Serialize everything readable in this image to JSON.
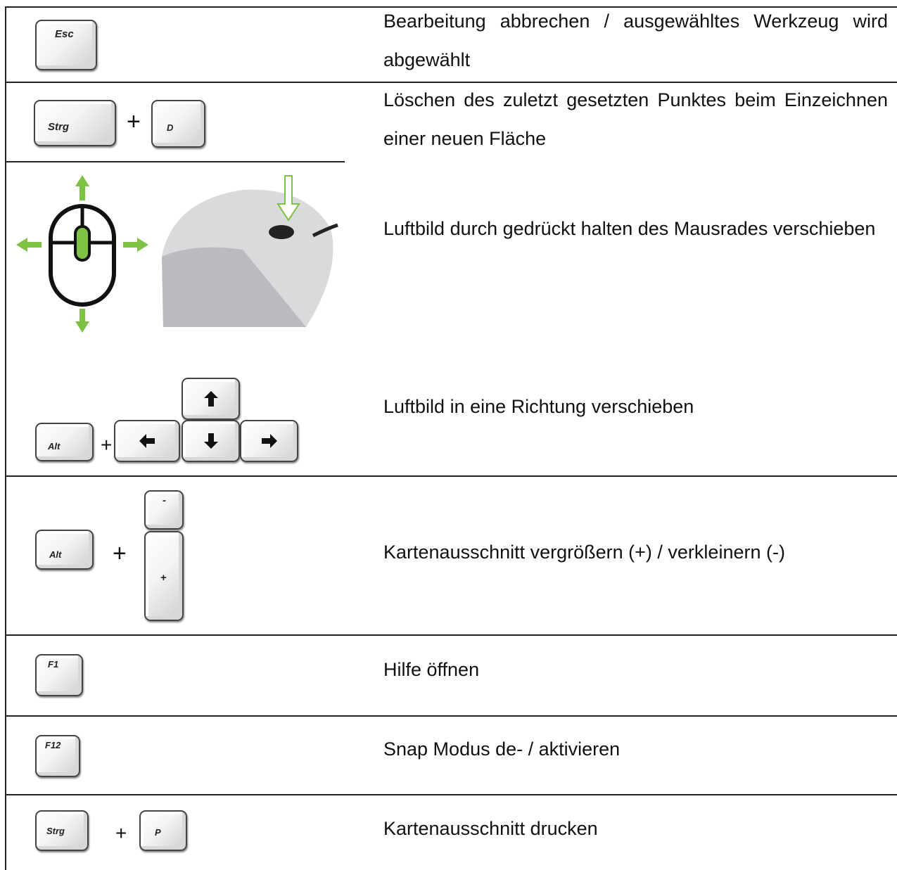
{
  "rows": [
    {
      "keys": [
        "Esc"
      ],
      "description": "Bearbeitung abbrechen / ausgewähltes Werkzeug wird abgewählt"
    },
    {
      "keys": [
        "Strg",
        "D"
      ],
      "plus": "+",
      "description": "Löschen des zuletzt gesetzten Punktes beim Einzeichnen einer neuen Fläche"
    },
    {
      "description": "Luftbild durch gedrückt halten des Mausrades verschieben"
    },
    {
      "keys": [
        "Alt"
      ],
      "plus": "+",
      "description": "Luftbild in eine Richtung verschieben"
    },
    {
      "keys": [
        "Alt",
        "-",
        "+"
      ],
      "plus": "+",
      "description": "Kartenausschnitt vergrößern (+) / verkleinern (-)"
    },
    {
      "keys": [
        "F1"
      ],
      "description": "Hilfe öffnen"
    },
    {
      "keys": [
        "F12"
      ],
      "description": "Snap Modus de- / aktivieren"
    },
    {
      "keys": [
        "Strg",
        "P"
      ],
      "plus": "+",
      "description": "Kartenausschnitt drucken"
    }
  ]
}
